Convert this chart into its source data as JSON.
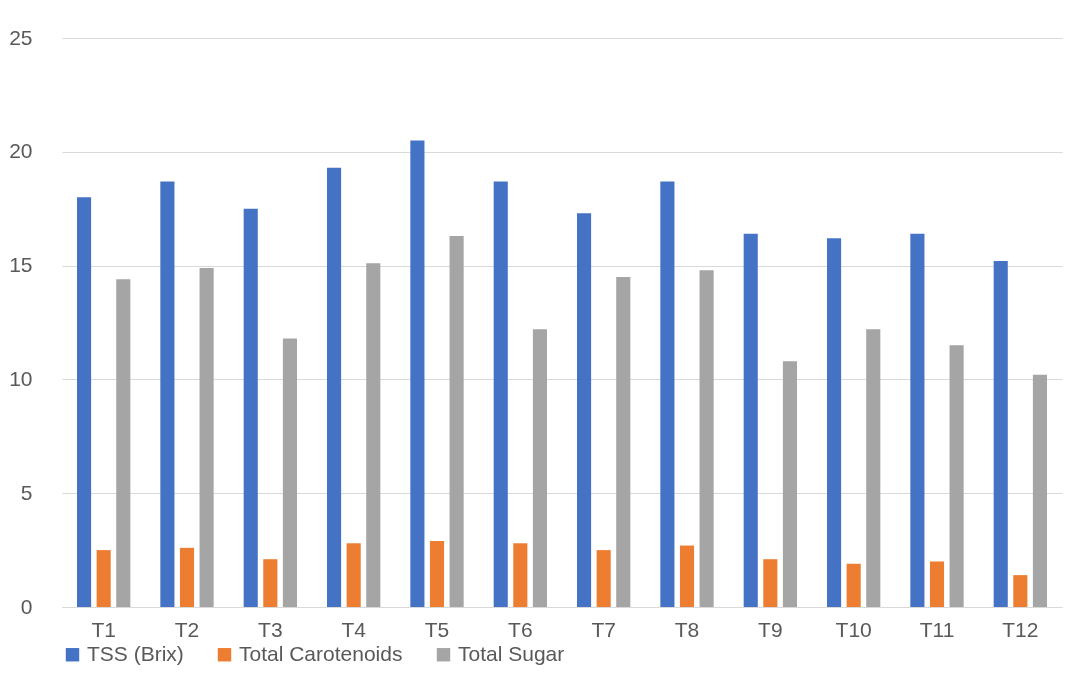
{
  "chart_data": {
    "type": "bar",
    "categories": [
      "T1",
      "T2",
      "T3",
      "T4",
      "T5",
      "T6",
      "T7",
      "T8",
      "T9",
      "T10",
      "T11",
      "T12"
    ],
    "series": [
      {
        "name": "TSS (Brix)",
        "color": "#4472c4",
        "values": [
          18.0,
          18.7,
          17.5,
          19.3,
          20.5,
          18.7,
          17.3,
          18.7,
          16.4,
          16.2,
          16.4,
          15.2
        ]
      },
      {
        "name": "Total Carotenoids",
        "color": "#ed7d31",
        "values": [
          2.5,
          2.6,
          2.1,
          2.8,
          2.9,
          2.8,
          2.5,
          2.7,
          2.1,
          1.9,
          2.0,
          1.4
        ]
      },
      {
        "name": "Total Sugar",
        "color": "#a5a5a5",
        "values": [
          14.4,
          14.9,
          11.8,
          15.1,
          16.3,
          12.2,
          14.5,
          14.8,
          10.8,
          12.2,
          11.5,
          10.2
        ]
      }
    ],
    "ylim": [
      0,
      25
    ],
    "yticks": [
      0,
      5,
      10,
      15,
      20,
      25
    ],
    "grid": "y",
    "legend": "bottom"
  }
}
